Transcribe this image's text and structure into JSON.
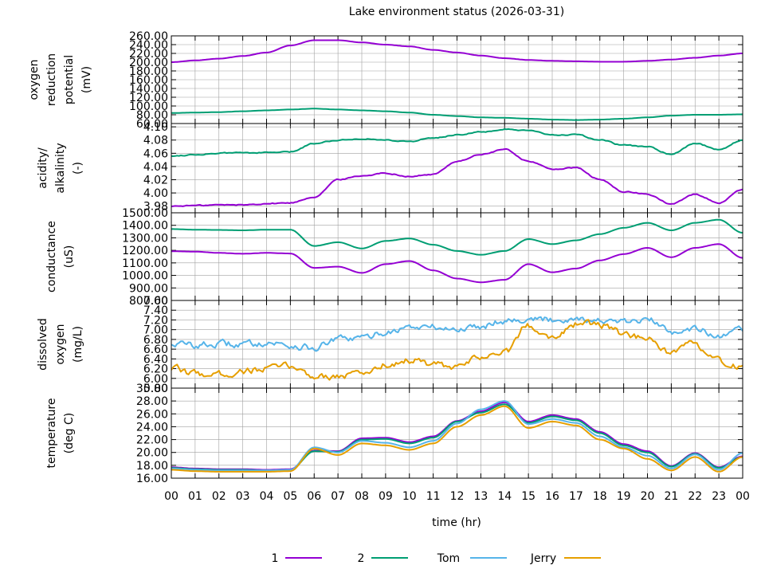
{
  "title": "Lake environment status (2026-03-31)",
  "xlabel": "time (hr)",
  "colors": {
    "1": "#9400d3",
    "2": "#009e73",
    "Tom": "#56b4e9",
    "Jerry": "#e69f00",
    "grid": "#a0a0a0"
  },
  "legend": [
    {
      "name": "1",
      "color": "#9400d3"
    },
    {
      "name": "2",
      "color": "#009e73"
    },
    {
      "name": "Tom",
      "color": "#56b4e9"
    },
    {
      "name": "Jerry",
      "color": "#e69f00"
    }
  ],
  "chart_data": [
    {
      "type": "line",
      "panel": "orp",
      "ylabel": [
        "oxygen",
        "reduction",
        "potential",
        "(mV)"
      ],
      "ylim": [
        60,
        260
      ],
      "yticks": [
        60.0,
        80.0,
        100.0,
        120.0,
        140.0,
        160.0,
        180.0,
        200.0,
        220.0,
        240.0,
        260.0
      ],
      "ytick_labels": [
        "60.00",
        "80.00",
        "100.00",
        "120.00",
        "140.00",
        "160.00",
        "180.00",
        "200.00",
        "220.00",
        "240.00",
        "260.00"
      ],
      "x": [
        0,
        1,
        2,
        3,
        4,
        5,
        6,
        7,
        8,
        9,
        10,
        11,
        12,
        13,
        14,
        15,
        16,
        17,
        18,
        19,
        20,
        21,
        22,
        23,
        24
      ],
      "series": [
        {
          "name": "1",
          "values": [
            200,
            204,
            208,
            214,
            222,
            238,
            250,
            250,
            245,
            240,
            236,
            228,
            222,
            215,
            209,
            205,
            203,
            202,
            201,
            201,
            203,
            206,
            210,
            215,
            220
          ]
        },
        {
          "name": "2",
          "values": [
            84,
            85,
            86,
            88,
            90,
            92,
            94,
            92,
            90,
            88,
            85,
            80,
            77,
            74,
            73,
            71,
            69,
            68,
            69,
            71,
            74,
            78,
            80,
            80,
            81
          ]
        }
      ]
    },
    {
      "type": "line",
      "panel": "ph",
      "ylabel": [
        "acidity/",
        "alkalinity",
        "(-)"
      ],
      "ylim": [
        3.97,
        4.105
      ],
      "yticks": [
        3.98,
        4.0,
        4.02,
        4.04,
        4.06,
        4.08,
        4.1
      ],
      "ytick_labels": [
        "3.98",
        "4.00",
        "4.02",
        "4.04",
        "4.06",
        "4.08",
        "4.10"
      ],
      "x": [
        0,
        1,
        2,
        3,
        4,
        5,
        6,
        7,
        8,
        9,
        10,
        11,
        12,
        13,
        14,
        15,
        16,
        17,
        18,
        19,
        20,
        21,
        22,
        23,
        24
      ],
      "series": [
        {
          "name": "1",
          "values": [
            3.98,
            3.981,
            3.982,
            3.982,
            3.984,
            3.985,
            3.994,
            4.02,
            4.026,
            4.03,
            4.025,
            4.028,
            4.048,
            4.058,
            4.066,
            4.048,
            4.036,
            4.038,
            4.02,
            4.002,
            3.998,
            3.983,
            3.998,
            3.985,
            4.005
          ]
        },
        {
          "name": "2",
          "values": [
            4.056,
            4.058,
            4.06,
            4.061,
            4.061,
            4.062,
            4.075,
            4.08,
            4.082,
            4.08,
            4.078,
            4.083,
            4.088,
            4.092,
            4.096,
            4.094,
            4.088,
            4.088,
            4.08,
            4.072,
            4.07,
            4.058,
            4.075,
            4.066,
            4.08
          ]
        }
      ]
    },
    {
      "type": "line",
      "panel": "conductance",
      "ylabel": [
        "conductance",
        "(uS)"
      ],
      "ylim": [
        800,
        1500
      ],
      "yticks": [
        800.0,
        900.0,
        1000.0,
        1100.0,
        1200.0,
        1300.0,
        1400.0,
        1500.0
      ],
      "ytick_labels": [
        "800.00",
        "900.00",
        "1000.00",
        "1100.00",
        "1200.00",
        "1300.00",
        "1400.00",
        "1500.00"
      ],
      "x": [
        0,
        1,
        2,
        3,
        4,
        5,
        6,
        7,
        8,
        9,
        10,
        11,
        12,
        13,
        14,
        15,
        16,
        17,
        18,
        19,
        20,
        21,
        22,
        23,
        24
      ],
      "series": [
        {
          "name": "1",
          "values": [
            1193,
            1190,
            1180,
            1173,
            1180,
            1175,
            1060,
            1070,
            1020,
            1090,
            1115,
            1040,
            975,
            945,
            965,
            1090,
            1025,
            1055,
            1120,
            1170,
            1220,
            1145,
            1220,
            1250,
            1140
          ]
        },
        {
          "name": "2",
          "values": [
            1370,
            1365,
            1363,
            1360,
            1365,
            1365,
            1235,
            1265,
            1215,
            1275,
            1295,
            1245,
            1195,
            1165,
            1195,
            1290,
            1250,
            1280,
            1330,
            1380,
            1420,
            1360,
            1420,
            1445,
            1340
          ]
        }
      ]
    },
    {
      "type": "line",
      "panel": "dissolved_oxygen",
      "ylabel": [
        "dissolved",
        "oxygen",
        "(mg/L)"
      ],
      "ylim": [
        5.8,
        7.6
      ],
      "yticks": [
        5.8,
        6.0,
        6.2,
        6.4,
        6.6,
        6.8,
        7.0,
        7.2,
        7.4,
        7.6
      ],
      "ytick_labels": [
        "5.80",
        "6.00",
        "6.20",
        "6.40",
        "6.60",
        "6.80",
        "7.00",
        "7.20",
        "7.40",
        "7.60"
      ],
      "x": [
        0,
        1,
        2,
        3,
        4,
        5,
        6,
        7,
        8,
        9,
        10,
        11,
        12,
        13,
        14,
        15,
        16,
        17,
        18,
        19,
        20,
        21,
        22,
        23,
        24
      ],
      "series": [
        {
          "name": "Tom",
          "values": [
            6.72,
            6.68,
            6.7,
            6.7,
            6.74,
            6.68,
            6.62,
            6.8,
            6.82,
            6.95,
            7.05,
            7.05,
            7.0,
            7.08,
            7.2,
            7.22,
            7.2,
            7.24,
            7.18,
            7.14,
            7.2,
            6.98,
            7.05,
            6.82,
            7.0
          ]
        },
        {
          "name": "Jerry",
          "values": [
            6.2,
            6.1,
            6.08,
            6.15,
            6.2,
            6.25,
            6.05,
            6.05,
            6.1,
            6.28,
            6.38,
            6.28,
            6.2,
            6.45,
            6.52,
            7.1,
            6.85,
            7.12,
            7.1,
            6.92,
            6.78,
            6.5,
            6.7,
            6.35,
            6.22
          ]
        }
      ]
    },
    {
      "type": "line",
      "panel": "temperature",
      "ylabel": [
        "temperature",
        "(deg C)"
      ],
      "ylim": [
        16,
        30
      ],
      "yticks": [
        16.0,
        18.0,
        20.0,
        22.0,
        24.0,
        26.0,
        28.0,
        30.0
      ],
      "ytick_labels": [
        "16.00",
        "18.00",
        "20.00",
        "22.00",
        "24.00",
        "26.00",
        "28.00",
        "30.00"
      ],
      "xticks": [
        "00",
        "01",
        "02",
        "03",
        "04",
        "05",
        "06",
        "07",
        "08",
        "09",
        "10",
        "11",
        "12",
        "13",
        "14",
        "15",
        "16",
        "17",
        "18",
        "19",
        "20",
        "21",
        "22",
        "23",
        "00"
      ],
      "x": [
        0,
        1,
        2,
        3,
        4,
        5,
        6,
        7,
        8,
        9,
        10,
        11,
        12,
        13,
        14,
        15,
        16,
        17,
        18,
        19,
        20,
        21,
        22,
        23,
        24
      ],
      "series": [
        {
          "name": "1",
          "values": [
            17.7,
            17.5,
            17.4,
            17.4,
            17.3,
            17.4,
            20.3,
            20.2,
            22.2,
            22.3,
            21.6,
            22.5,
            24.9,
            26.4,
            27.8,
            24.8,
            25.8,
            25.2,
            23.2,
            21.3,
            20.2,
            17.9,
            19.9,
            17.7,
            19.4
          ]
        },
        {
          "name": "2",
          "values": [
            17.6,
            17.4,
            17.3,
            17.3,
            17.2,
            17.3,
            20.2,
            20.1,
            22.0,
            22.1,
            21.4,
            22.3,
            24.8,
            26.2,
            27.5,
            24.6,
            25.6,
            25.0,
            23.0,
            21.1,
            20.0,
            17.8,
            19.8,
            17.6,
            19.3
          ]
        },
        {
          "name": "Tom",
          "values": [
            17.5,
            17.3,
            17.2,
            17.2,
            17.2,
            17.3,
            20.8,
            20.0,
            21.8,
            21.5,
            20.8,
            21.8,
            24.5,
            26.7,
            28.0,
            24.4,
            25.2,
            24.6,
            22.5,
            20.8,
            19.5,
            17.5,
            19.7,
            17.3,
            19.9
          ]
        },
        {
          "name": "Jerry",
          "values": [
            17.3,
            17.1,
            17.0,
            17.0,
            17.0,
            17.1,
            20.6,
            19.6,
            21.4,
            21.1,
            20.4,
            21.4,
            24.0,
            25.8,
            27.2,
            23.8,
            24.8,
            24.2,
            22.0,
            20.6,
            19.0,
            17.2,
            19.3,
            17.0,
            19.3
          ]
        }
      ]
    }
  ]
}
